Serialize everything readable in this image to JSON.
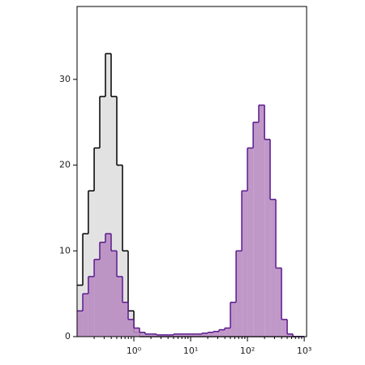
{
  "chart_data": {
    "type": "histogram",
    "xscale": "log",
    "bins": [
      0.1,
      0.126,
      0.158,
      0.2,
      0.251,
      0.316,
      0.398,
      0.501,
      0.631,
      0.794,
      1,
      1.26,
      1.58,
      2,
      2.51,
      3.16,
      3.98,
      5.01,
      6.31,
      7.94,
      10,
      12.6,
      15.8,
      20,
      25.1,
      31.6,
      39.8,
      50.1,
      63.1,
      79.4,
      100,
      126,
      158,
      200,
      251,
      316,
      398,
      501,
      631,
      794,
      1000
    ],
    "series": [
      {
        "color": "#e2e2e2",
        "line_color": "#000000",
        "values": [
          6,
          12,
          17,
          22,
          28,
          33,
          28,
          20,
          10,
          3,
          0.5,
          0,
          0,
          0,
          0,
          0,
          0,
          0,
          0,
          0,
          0,
          0,
          0,
          0,
          0,
          0,
          0,
          0,
          0,
          0,
          0,
          0,
          0,
          0,
          0,
          0,
          0,
          0,
          0,
          0
        ]
      },
      {
        "color": "#b98dc2",
        "line_color": "#5b1a8e",
        "values": [
          3,
          5,
          7,
          9,
          11,
          12,
          10,
          7,
          4,
          2,
          1,
          0.5,
          0.3,
          0.3,
          0.2,
          0.2,
          0.2,
          0.3,
          0.3,
          0.3,
          0.3,
          0.3,
          0.4,
          0.5,
          0.6,
          0.8,
          1,
          4,
          10,
          17,
          22,
          25,
          27,
          23,
          16,
          8,
          2,
          0.3,
          0,
          0
        ]
      }
    ],
    "xlim": [
      0.1,
      1100
    ],
    "ylim": [
      0,
      38.5
    ],
    "xticks": [
      {
        "value": 1,
        "label": "10⁰"
      },
      {
        "value": 10,
        "label": "10¹"
      },
      {
        "value": 100,
        "label": "10²"
      },
      {
        "value": 1000,
        "label": "10³"
      }
    ],
    "yticks": [
      0,
      10,
      20,
      30
    ]
  }
}
